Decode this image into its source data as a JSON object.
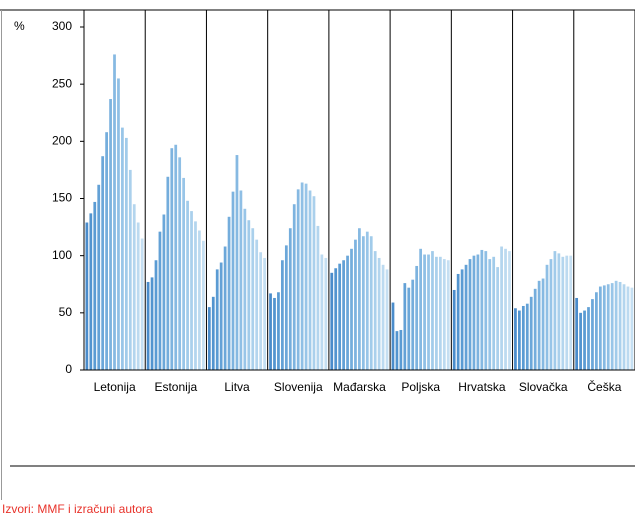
{
  "chart_data": {
    "type": "bar",
    "unit_label": "%",
    "source": "Izvori: MMF i izračuni autora",
    "ylim": [
      0,
      300
    ],
    "yticks": [
      0,
      50,
      100,
      150,
      200,
      250,
      300
    ],
    "colors": [
      "#4a8ccb",
      "#5294cf",
      "#5a9bd3",
      "#63a1d6",
      "#6ba7d9",
      "#74add c",
      "#7db3df",
      "#86b9e2",
      "#8fbfe5",
      "#98c5e8",
      "#a1cbea",
      "#aad0ec",
      "#b3d5ee",
      "#bcdaf0",
      "#c5dff2"
    ],
    "groups": [
      {
        "name": "Letonija",
        "values": [
          129,
          137,
          147,
          162,
          187,
          208,
          237,
          276,
          255,
          212,
          203,
          175,
          145,
          129,
          115
        ]
      },
      {
        "name": "Estonija",
        "values": [
          77,
          81,
          96,
          121,
          136,
          169,
          194,
          197,
          186,
          168,
          148,
          139,
          130,
          122,
          113
        ]
      },
      {
        "name": "Litva",
        "values": [
          55,
          64,
          88,
          94,
          108,
          134,
          156,
          188,
          157,
          141,
          131,
          124,
          114,
          103,
          98
        ]
      },
      {
        "name": "Slovenija",
        "values": [
          67,
          63,
          68,
          96,
          109,
          124,
          145,
          158,
          164,
          163,
          157,
          152,
          126,
          101,
          98
        ]
      },
      {
        "name": "Mađarska",
        "values": [
          85,
          89,
          93,
          96,
          100,
          106,
          114,
          124,
          117,
          121,
          117,
          104,
          98,
          92,
          88
        ]
      },
      {
        "name": "Poljska",
        "values": [
          59,
          34,
          35,
          76,
          72,
          79,
          91,
          106,
          101,
          101,
          104,
          99,
          99,
          97,
          96
        ]
      },
      {
        "name": "Hrvatska",
        "values": [
          70,
          84,
          88,
          92,
          97,
          100,
          101,
          105,
          104,
          97,
          99,
          90,
          108,
          106,
          104
        ]
      },
      {
        "name": "Slovačka",
        "values": [
          54,
          52,
          56,
          58,
          64,
          71,
          78,
          80,
          92,
          97,
          104,
          102,
          99,
          100,
          100
        ]
      },
      {
        "name": "Češka",
        "values": [
          63,
          50,
          52,
          55,
          62,
          68,
          73,
          74,
          75,
          76,
          78,
          77,
          75,
          73,
          72
        ]
      }
    ]
  }
}
